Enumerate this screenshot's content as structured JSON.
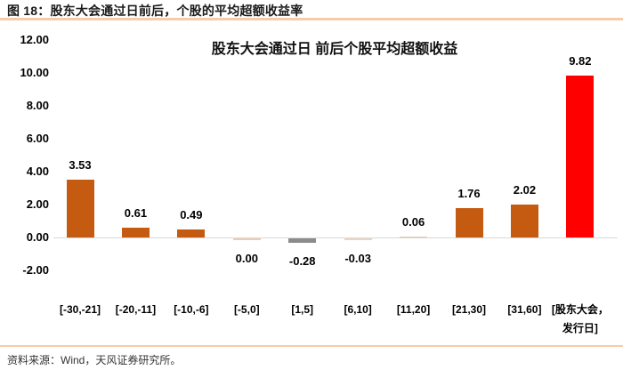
{
  "header": {
    "title": "图 18：股东大会通过日前后，个股的平均超额收益率"
  },
  "footer": {
    "source": "资料来源：Wind，天风证券研究所。"
  },
  "theme": {
    "rule_color": "#F8CBA8",
    "zero_line_color": "#D9D9D9",
    "bar_main_color": "#C55A11",
    "bar_highlight_color": "#FF0000",
    "bar_gray_color": "#8C8C8C",
    "bar_light_color": "#EBCDB2"
  },
  "chart_data": {
    "type": "bar",
    "title": "股东大会通过日 前后个股平均超额收益",
    "categories": [
      "[-30,-21]",
      "[-20,-11]",
      "[-10,-6]",
      "[-5,0]",
      "[1,5]",
      "[6,10]",
      "[11,20]",
      "[21,30]",
      "[31,60]",
      "[股东大会，\n发行日]"
    ],
    "values": [
      3.53,
      0.61,
      0.49,
      0.0,
      -0.28,
      -0.03,
      0.06,
      1.76,
      2.02,
      9.82
    ],
    "data_labels": [
      "3.53",
      "0.61",
      "0.49",
      "0.00",
      "-0.28",
      "-0.03",
      "0.06",
      "1.76",
      "2.02",
      "9.82"
    ],
    "bar_colors": [
      "#C55A11",
      "#C55A11",
      "#C55A11",
      "#EBCDB2",
      "#8C8C8C",
      "#EBD5C2",
      "#E8C8AC",
      "#C55A11",
      "#C55A11",
      "#FF0000"
    ],
    "y_ticks": [
      {
        "label": "12.00",
        "value": 12
      },
      {
        "label": "10.00",
        "value": 10
      },
      {
        "label": "8.00",
        "value": 8
      },
      {
        "label": "6.00",
        "value": 6
      },
      {
        "label": "4.00",
        "value": 4
      },
      {
        "label": "2.00",
        "value": 2
      },
      {
        "label": "0.00",
        "value": 0
      },
      {
        "label": "-2.00",
        "value": -2
      }
    ],
    "ylim": [
      -2,
      12
    ],
    "grid": false,
    "legend": "none",
    "xlabel": "",
    "ylabel": ""
  }
}
